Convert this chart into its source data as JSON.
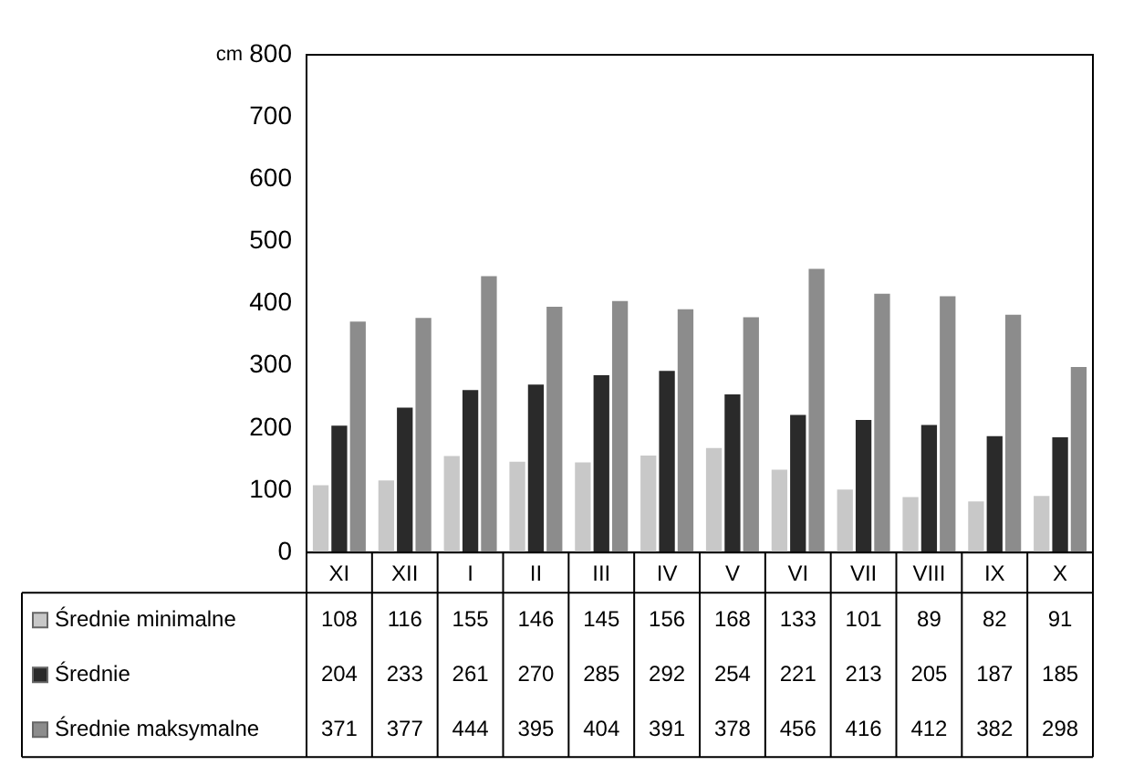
{
  "chart_data": {
    "type": "bar",
    "ylabel": "cm",
    "categories": [
      "XI",
      "XII",
      "I",
      "II",
      "III",
      "IV",
      "V",
      "VI",
      "VII",
      "VIII",
      "IX",
      "X"
    ],
    "series": [
      {
        "name": "Średnie minimalne",
        "color": "#c8c8c8",
        "values": [
          108,
          116,
          155,
          146,
          145,
          156,
          168,
          133,
          101,
          89,
          82,
          91
        ]
      },
      {
        "name": "Średnie",
        "color": "#2a2a2a",
        "values": [
          204,
          233,
          261,
          270,
          285,
          292,
          254,
          221,
          213,
          205,
          187,
          185
        ]
      },
      {
        "name": "Średnie maksymalne",
        "color": "#8c8c8c",
        "values": [
          371,
          377,
          444,
          395,
          404,
          391,
          378,
          456,
          416,
          412,
          382,
          298
        ]
      }
    ],
    "ylim": [
      0,
      800
    ],
    "yticks": [
      0,
      100,
      200,
      300,
      400,
      500,
      600,
      700,
      800
    ],
    "grid": false,
    "legend": "bottom left",
    "data_labels": true
  }
}
